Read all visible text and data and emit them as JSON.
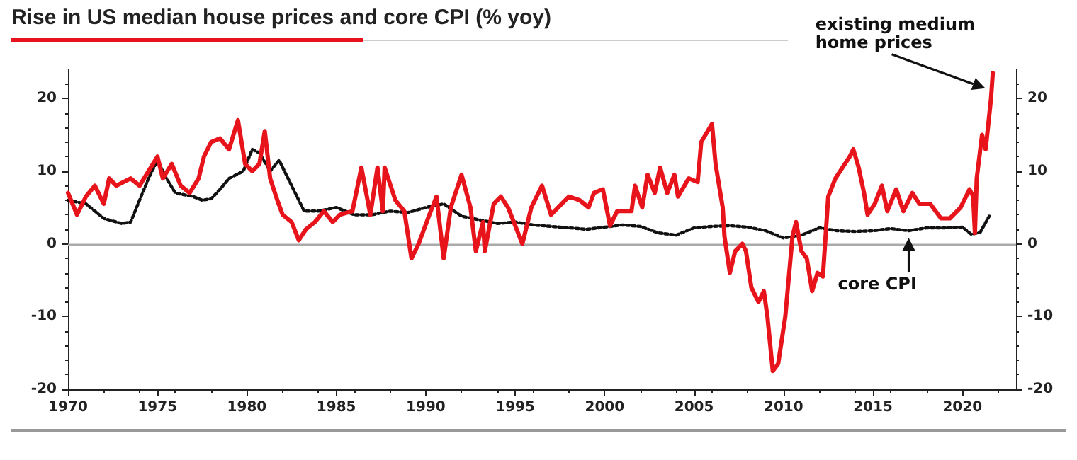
{
  "chart_data": {
    "type": "line",
    "title": "Rise in US median house prices and core CPI (% yoy)",
    "xlim": [
      1970,
      2023
    ],
    "xticks": [
      1970,
      1975,
      1980,
      1985,
      1990,
      1995,
      2000,
      2005,
      2010,
      2015,
      2020
    ],
    "ylim": [
      -20,
      24
    ],
    "yticks": [
      -20,
      -10,
      0,
      10,
      20
    ],
    "y2lim": [
      -20,
      24
    ],
    "y2ticks": [
      -20,
      -10,
      0,
      10,
      20
    ],
    "grid": false,
    "marker": "none",
    "ref_lines": [
      {
        "axis": "y",
        "value": 0,
        "color": "#aaaaaa"
      }
    ],
    "annotations": [
      {
        "text": "existing medium home prices",
        "x": 2021.6,
        "y": 21
      },
      {
        "text": "core CPI",
        "x": 2017,
        "y": 2
      }
    ],
    "series": [
      {
        "color": "#e8141b",
        "line_style": "solid",
        "x": [
          1970,
          1970.5,
          1971,
          1971.5,
          1972,
          1972.3,
          1972.7,
          1973.5,
          1974,
          1974.5,
          1975,
          1975.3,
          1975.8,
          1976.3,
          1976.8,
          1977.3,
          1977.6,
          1978,
          1978.5,
          1979,
          1979.5,
          1979.9,
          1980.3,
          1980.7,
          1981,
          1981.3,
          1981.7,
          1982,
          1982.5,
          1982.9,
          1983.3,
          1983.8,
          1984.3,
          1984.8,
          1985.2,
          1985.9,
          1986.4,
          1986.9,
          1987.3,
          1987.6,
          1987.7,
          1988.3,
          1988.8,
          1989.2,
          1989.6,
          1990.2,
          1990.6,
          1991,
          1991.4,
          1992,
          1992.5,
          1992.8,
          1993.2,
          1993.3,
          1993.8,
          1994.2,
          1994.6,
          1995.4,
          1995.9,
          1996.5,
          1997,
          1997.8,
          1998,
          1998.6,
          1999.1,
          1999.4,
          1999.9,
          2000.3,
          2000.7,
          2001.5,
          2001.7,
          2002.1,
          2002.4,
          2002.8,
          2003.1,
          2003.5,
          2003.9,
          2004.1,
          2004.7,
          2005.2,
          2005.4,
          2006,
          2006.2,
          2006.6,
          2006.7,
          2007,
          2007.3,
          2007.7,
          2007.9,
          2008.2,
          2008.6,
          2008.9,
          2009.1,
          2009.4,
          2009.7,
          2010.1,
          2010.5,
          2010.7,
          2011,
          2011.3,
          2011.6,
          2011.9,
          2012.2,
          2012.5,
          2012.9,
          2013.3,
          2013.7,
          2013.9,
          2014.2,
          2014.5,
          2014.7,
          2015.1,
          2015.5,
          2015.8,
          2016.3,
          2016.7,
          2017.2,
          2017.6,
          2018.2,
          2018.8,
          2019.3,
          2019.9,
          2020.4,
          2020.6,
          2020.7,
          2020.8,
          2021.1,
          2021.3,
          2021.6,
          2021.7
        ],
        "values": [
          7,
          4,
          6.5,
          8,
          5.5,
          9,
          8,
          9,
          8,
          10,
          12,
          9,
          11,
          8,
          7,
          9,
          12,
          14,
          14.5,
          13,
          17,
          11,
          10,
          11,
          15.5,
          9,
          6,
          4,
          3,
          0.5,
          2,
          3,
          4.5,
          3,
          4,
          4.5,
          10.5,
          4,
          10.5,
          4.5,
          10.5,
          6,
          4.5,
          -2,
          0,
          4,
          6.5,
          -2,
          5,
          9.5,
          5,
          -1,
          3,
          -1,
          5.5,
          6.5,
          5,
          0,
          5,
          8,
          4,
          6,
          6.5,
          6,
          5,
          7,
          7.5,
          2.5,
          4.5,
          4.5,
          8,
          5,
          9.5,
          7,
          10.5,
          7,
          9.5,
          6.5,
          9,
          8.5,
          14,
          16.5,
          11,
          5,
          1,
          -4,
          -1,
          0,
          -1,
          -6,
          -8,
          -6.5,
          -10,
          -17.5,
          -16.5,
          -10,
          1,
          3,
          -1,
          -2,
          -6.5,
          -4,
          -4.5,
          6.5,
          9,
          10.5,
          12,
          13,
          10.5,
          7,
          4,
          5.5,
          8,
          4.5,
          7.5,
          4.5,
          7,
          5.5,
          5.5,
          3.5,
          3.5,
          5,
          7.5,
          6.5,
          1.5,
          9,
          15,
          13,
          20,
          23.5
        ]
      },
      {
        "color": "#111111",
        "line_style": "dotted",
        "x": [
          1970,
          1971,
          1972,
          1973,
          1973.5,
          1974,
          1974.5,
          1975,
          1975.5,
          1976,
          1977,
          1977.5,
          1978,
          1978.5,
          1979,
          1979.8,
          1980.3,
          1980.7,
          1981.3,
          1981.8,
          1982.5,
          1983.2,
          1984,
          1985,
          1986,
          1987,
          1988,
          1989,
          1990,
          1991,
          1992,
          1993,
          1994,
          1995,
          1996,
          1997,
          1998,
          1999,
          2000,
          2001,
          2002,
          2003,
          2004,
          2005,
          2006,
          2007,
          2008,
          2009,
          2010,
          2011,
          2012,
          2013,
          2014,
          2015,
          2016,
          2017,
          2018,
          2019,
          2020,
          2020.5,
          2021,
          2021.5
        ],
        "values": [
          6,
          5.5,
          3.5,
          2.8,
          3,
          6,
          9,
          11.5,
          9,
          7,
          6.5,
          6,
          6.2,
          7.5,
          9,
          10,
          13,
          12.5,
          10,
          11.5,
          8,
          4.5,
          4.5,
          5,
          4,
          4,
          4.5,
          4.3,
          5,
          5.5,
          3.8,
          3.3,
          2.8,
          3,
          2.6,
          2.4,
          2.2,
          2,
          2.3,
          2.6,
          2.4,
          1.5,
          1.2,
          2.2,
          2.4,
          2.5,
          2.3,
          1.8,
          0.8,
          1.2,
          2.2,
          1.8,
          1.7,
          1.8,
          2.1,
          1.8,
          2.2,
          2.2,
          2.3,
          1.3,
          1.6,
          3.8
        ]
      }
    ]
  }
}
